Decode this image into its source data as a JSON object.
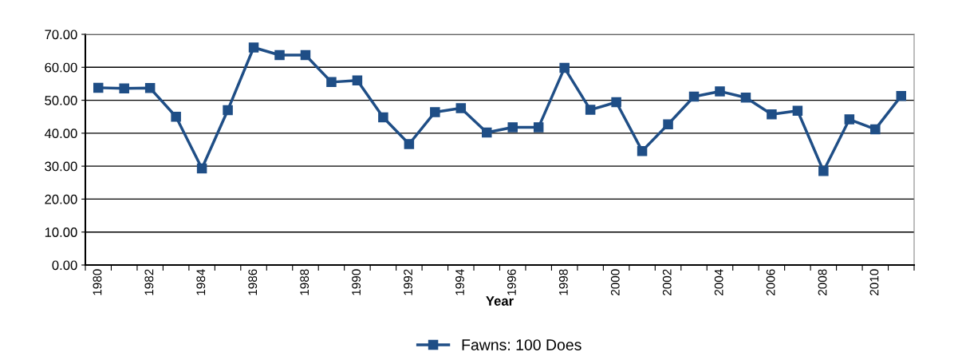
{
  "chart_data": {
    "type": "line",
    "xlabel": "Year",
    "categories": [
      "1980",
      null,
      "1982",
      null,
      "1984",
      null,
      "1986",
      null,
      "1988",
      null,
      "1990",
      null,
      "1992",
      null,
      "1994",
      null,
      "1996",
      null,
      "1998",
      null,
      "2000",
      null,
      "2002",
      null,
      "2004",
      null,
      "2006",
      null,
      "2008",
      null,
      "2010",
      null
    ],
    "series": [
      {
        "name": "Fawns: 100 Does",
        "color": "#1f4e86",
        "values": [
          53.8,
          53.6,
          53.7,
          45.0,
          29.3,
          47.0,
          66.0,
          63.7,
          63.7,
          55.5,
          56.0,
          44.8,
          36.7,
          46.4,
          47.6,
          40.2,
          41.8,
          41.8,
          59.8,
          47.1,
          49.4,
          34.6,
          42.7,
          51.1,
          52.7,
          50.8,
          45.7,
          46.8,
          28.5,
          44.2,
          41.2,
          51.3
        ]
      }
    ],
    "ylim": [
      0,
      70
    ],
    "yticks": [
      {
        "value": 0,
        "label": "0.00"
      },
      {
        "value": 10,
        "label": "10.00"
      },
      {
        "value": 20,
        "label": "20.00"
      },
      {
        "value": 30,
        "label": "30.00"
      },
      {
        "value": 40,
        "label": "40.00"
      },
      {
        "value": 50,
        "label": "50.00"
      },
      {
        "value": 60,
        "label": "60.00"
      },
      {
        "value": 70,
        "label": "70.00"
      }
    ],
    "grid": "y",
    "legend": "bottom",
    "marker": "square",
    "line_style": "solid"
  }
}
